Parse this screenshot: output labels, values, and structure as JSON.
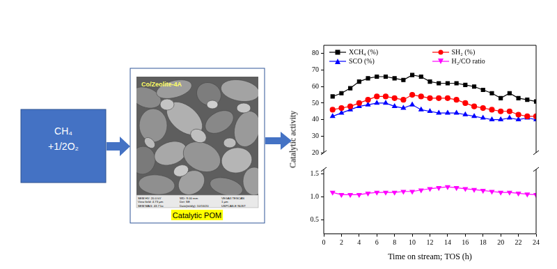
{
  "diagram": {
    "input": {
      "lines": [
        "CH₄",
        "+1/2O₂"
      ]
    },
    "catalyst": {
      "image_title": "Co/Zeolite-4A",
      "image_info": [
        [
          "SEM HV: 20.0 kV",
          "WD: 9.00 mm",
          "VEGA3 TESCAN"
        ],
        [
          "View field: 4.73 μm",
          "Det: SE",
          "1 μm"
        ],
        [
          "SEM MAG: 43.7 kx",
          "Date(m/d/y): 10/16/20",
          "USPCAS-E NUST"
        ]
      ],
      "caption": "Catalytic POM"
    }
  },
  "chart_data": [
    {
      "type": "line",
      "y_label": "Catalytic activity",
      "x": [
        1,
        2,
        3,
        4,
        5,
        6,
        7,
        8,
        9,
        10,
        11,
        12,
        13,
        14,
        15,
        16,
        17,
        18,
        19,
        20,
        21,
        22,
        23,
        24
      ],
      "ylim": [
        20,
        85
      ],
      "yticks": [
        20,
        30,
        40,
        50,
        60,
        70,
        80
      ],
      "grid": false,
      "legend": "top",
      "tick_labels": "y",
      "series": [
        {
          "name": "XCH₄ (%)",
          "color": "#000000",
          "marker": "square",
          "line_style": "solid",
          "values": [
            54,
            56,
            59,
            63,
            65,
            66,
            66,
            65,
            64,
            67,
            66,
            63,
            62,
            62,
            62,
            61,
            60,
            58,
            56,
            53,
            56,
            53,
            52,
            51
          ]
        },
        {
          "name": "SH₂ (%)",
          "color": "#ff0000",
          "marker": "circle",
          "line_style": "solid",
          "values": [
            46,
            47,
            48,
            50,
            52,
            54,
            54,
            53,
            52,
            55,
            54,
            53,
            53,
            53,
            52,
            50,
            48,
            47,
            46,
            45,
            45,
            43,
            42,
            42
          ]
        },
        {
          "name": "SCO (%)",
          "color": "#0000ff",
          "marker": "triangle",
          "line_style": "solid",
          "values": [
            42,
            44,
            46,
            48,
            49,
            50,
            50,
            48,
            47,
            49,
            46,
            45,
            44,
            44,
            44,
            43,
            42,
            41,
            40,
            40,
            41,
            40,
            41,
            40
          ]
        }
      ]
    },
    {
      "type": "line",
      "x_label": "Time on stream; TOS (h)",
      "x": [
        1,
        2,
        3,
        4,
        5,
        6,
        7,
        8,
        9,
        10,
        11,
        12,
        13,
        14,
        15,
        16,
        17,
        18,
        19,
        20,
        21,
        22,
        23,
        24
      ],
      "xlim": [
        0,
        24
      ],
      "xticks": [
        0,
        2,
        4,
        6,
        8,
        10,
        12,
        14,
        16,
        18,
        20,
        22,
        24
      ],
      "ylim": [
        0.2,
        1.6
      ],
      "yticks": [
        0.5,
        {
          "value": 1,
          "label": "1.0"
        },
        1.5
      ],
      "grid": false,
      "series": [
        {
          "name": "H₂/CO ratio",
          "color": "#ff00ff",
          "marker": "triangle_down",
          "line_style": "solid",
          "values": [
            1.1,
            1.05,
            1.05,
            1.05,
            1.08,
            1.1,
            1.1,
            1.1,
            1.12,
            1.12,
            1.15,
            1.18,
            1.2,
            1.22,
            1.2,
            1.18,
            1.16,
            1.14,
            1.12,
            1.1,
            1.1,
            1.08,
            1.06,
            1.05
          ]
        }
      ]
    }
  ]
}
